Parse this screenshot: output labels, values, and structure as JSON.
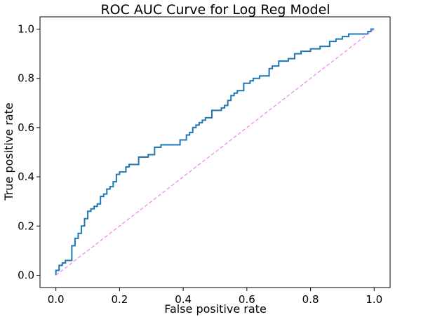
{
  "chart_data": {
    "type": "line",
    "title": "ROC AUC Curve for Log Reg Model",
    "xlabel": "False positive rate",
    "ylabel": "True positive rate",
    "xlim": [
      -0.05,
      1.05
    ],
    "ylim": [
      -0.05,
      1.05
    ],
    "xticks": [
      "0.0",
      "0.2",
      "0.4",
      "0.6",
      "0.8",
      "1.0"
    ],
    "yticks": [
      "0.0",
      "0.2",
      "0.4",
      "0.6",
      "0.8",
      "1.0"
    ],
    "grid": false,
    "colors": {
      "roc": "#1f77b4",
      "baseline": "#ee82ee"
    },
    "series": [
      {
        "style": "solid",
        "x": [
          0.0,
          0.0,
          0.01,
          0.01,
          0.02,
          0.02,
          0.03,
          0.03,
          0.05,
          0.05,
          0.06,
          0.06,
          0.07,
          0.07,
          0.08,
          0.08,
          0.09,
          0.09,
          0.1,
          0.1,
          0.11,
          0.11,
          0.12,
          0.12,
          0.13,
          0.13,
          0.14,
          0.14,
          0.15,
          0.15,
          0.16,
          0.16,
          0.17,
          0.17,
          0.18,
          0.18,
          0.19,
          0.19,
          0.2,
          0.2,
          0.22,
          0.22,
          0.23,
          0.23,
          0.26,
          0.26,
          0.29,
          0.29,
          0.31,
          0.31,
          0.33,
          0.33,
          0.39,
          0.39,
          0.41,
          0.41,
          0.42,
          0.42,
          0.43,
          0.43,
          0.44,
          0.44,
          0.45,
          0.45,
          0.46,
          0.46,
          0.47,
          0.47,
          0.48,
          0.48,
          0.49,
          0.49,
          0.52,
          0.52,
          0.53,
          0.53,
          0.54,
          0.54,
          0.55,
          0.55,
          0.56,
          0.56,
          0.57,
          0.57,
          0.59,
          0.59,
          0.61,
          0.61,
          0.62,
          0.62,
          0.64,
          0.64,
          0.67,
          0.67,
          0.68,
          0.68,
          0.7,
          0.7,
          0.73,
          0.73,
          0.75,
          0.75,
          0.77,
          0.77,
          0.8,
          0.8,
          0.83,
          0.83,
          0.86,
          0.86,
          0.88,
          0.88,
          0.9,
          0.9,
          0.92,
          0.92,
          0.98,
          0.98,
          0.99,
          0.99,
          1.0
        ],
        "y": [
          0.0,
          0.02,
          0.02,
          0.04,
          0.04,
          0.05,
          0.05,
          0.06,
          0.06,
          0.12,
          0.12,
          0.15,
          0.15,
          0.17,
          0.17,
          0.2,
          0.2,
          0.23,
          0.23,
          0.26,
          0.26,
          0.27,
          0.27,
          0.28,
          0.28,
          0.29,
          0.29,
          0.32,
          0.32,
          0.33,
          0.33,
          0.35,
          0.35,
          0.36,
          0.36,
          0.38,
          0.38,
          0.41,
          0.41,
          0.42,
          0.42,
          0.44,
          0.44,
          0.45,
          0.45,
          0.48,
          0.48,
          0.49,
          0.49,
          0.52,
          0.52,
          0.53,
          0.53,
          0.55,
          0.55,
          0.57,
          0.57,
          0.58,
          0.58,
          0.6,
          0.6,
          0.61,
          0.61,
          0.62,
          0.62,
          0.63,
          0.63,
          0.64,
          0.64,
          0.64,
          0.64,
          0.67,
          0.67,
          0.68,
          0.68,
          0.69,
          0.69,
          0.71,
          0.71,
          0.73,
          0.73,
          0.74,
          0.74,
          0.75,
          0.75,
          0.78,
          0.78,
          0.79,
          0.79,
          0.8,
          0.8,
          0.81,
          0.81,
          0.84,
          0.84,
          0.85,
          0.85,
          0.87,
          0.87,
          0.88,
          0.88,
          0.9,
          0.9,
          0.91,
          0.91,
          0.92,
          0.92,
          0.93,
          0.93,
          0.95,
          0.95,
          0.96,
          0.96,
          0.97,
          0.97,
          0.98,
          0.98,
          0.99,
          0.99,
          1.0,
          1.0
        ]
      },
      {
        "style": "dashed",
        "x": [
          0.0,
          1.0
        ],
        "y": [
          0.0,
          1.0
        ]
      }
    ]
  }
}
